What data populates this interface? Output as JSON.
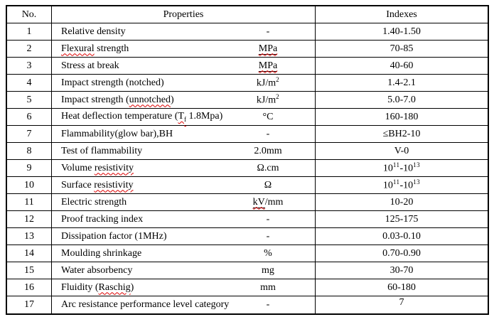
{
  "colors": {
    "background": "#ffffff",
    "border": "#000000",
    "text": "#000000",
    "spellcheck_squiggle": "#dd0000"
  },
  "table": {
    "header": {
      "no": "No.",
      "properties": "Properties",
      "indexes": "Indexes"
    },
    "rows": [
      {
        "no": "1",
        "property": [
          {
            "t": "Relative density"
          }
        ],
        "unit": [
          {
            "t": "-"
          }
        ],
        "index": [
          {
            "t": "1.40-1.50"
          }
        ]
      },
      {
        "no": "2",
        "property": [
          {
            "t": "Flexural",
            "s": "wavy"
          },
          {
            "t": " strength"
          }
        ],
        "unit": [
          {
            "t": "MPa",
            "s": "ul wavy"
          }
        ],
        "index": [
          {
            "t": "70-85"
          }
        ]
      },
      {
        "no": "3",
        "property": [
          {
            "t": "Stress at break"
          }
        ],
        "unit": [
          {
            "t": "MPa",
            "s": "ul wavy"
          }
        ],
        "index": [
          {
            "t": "40-60"
          }
        ]
      },
      {
        "no": "4",
        "property": [
          {
            "t": "Impact strength (notched)"
          }
        ],
        "unit": [
          {
            "t": "kJ/m"
          },
          {
            "t": "2",
            "s": "sup"
          }
        ],
        "index": [
          {
            "t": "1.4-2.1"
          }
        ]
      },
      {
        "no": "5",
        "property": [
          {
            "t": "Impact strength ("
          },
          {
            "t": "unnotched",
            "s": "wavy"
          },
          {
            "t": ")"
          }
        ],
        "unit": [
          {
            "t": "kJ/m"
          },
          {
            "t": "2",
            "s": "sup"
          }
        ],
        "index": [
          {
            "t": "5.0-7.0"
          }
        ]
      },
      {
        "no": "6",
        "property": [
          {
            "t": "Heat deflection temperature ("
          },
          {
            "t": "T",
            "s": "wavy"
          },
          {
            "t": "f",
            "s": "sub wavy"
          },
          {
            "t": " 1.8Mpa)"
          }
        ],
        "unit": [
          {
            "t": "°C"
          }
        ],
        "index": [
          {
            "t": "160-180"
          }
        ]
      },
      {
        "no": "7",
        "property": [
          {
            "t": "Flammability(glow bar),BH"
          }
        ],
        "unit": [
          {
            "t": "-"
          }
        ],
        "index": [
          {
            "t": "≤BH2-10"
          }
        ]
      },
      {
        "no": "8",
        "property": [
          {
            "t": "Test of flammability"
          }
        ],
        "unit": [
          {
            "t": "2.0mm"
          }
        ],
        "index": [
          {
            "t": "V-0"
          }
        ]
      },
      {
        "no": "9",
        "property": [
          {
            "t": "Volume "
          },
          {
            "t": "resistivity",
            "s": "wavy"
          }
        ],
        "unit": [
          {
            "t": "Ω.cm"
          }
        ],
        "index": [
          {
            "t": "10"
          },
          {
            "t": "11",
            "s": "sup"
          },
          {
            "t": "-10"
          },
          {
            "t": "13",
            "s": "sup"
          }
        ]
      },
      {
        "no": "10",
        "property": [
          {
            "t": "Surface "
          },
          {
            "t": "resistivity",
            "s": "wavy"
          }
        ],
        "unit": [
          {
            "t": "Ω"
          }
        ],
        "index": [
          {
            "t": "10"
          },
          {
            "t": "11",
            "s": "sup"
          },
          {
            "t": "-10"
          },
          {
            "t": "13",
            "s": "sup"
          }
        ]
      },
      {
        "no": "11",
        "property": [
          {
            "t": "Electric strength"
          }
        ],
        "unit": [
          {
            "t": "kV",
            "s": "ul wavy"
          },
          {
            "t": "/mm"
          }
        ],
        "index": [
          {
            "t": "10-20"
          }
        ]
      },
      {
        "no": "12",
        "property": [
          {
            "t": "Proof tracking index"
          }
        ],
        "unit": [
          {
            "t": "-"
          }
        ],
        "index": [
          {
            "t": "125-175"
          }
        ]
      },
      {
        "no": "13",
        "property": [
          {
            "t": "Dissipation factor (1MHz)"
          }
        ],
        "unit": [
          {
            "t": "-"
          }
        ],
        "index": [
          {
            "t": "0.03-0.10"
          }
        ]
      },
      {
        "no": "14",
        "property": [
          {
            "t": "Moulding shrinkage"
          }
        ],
        "unit": [
          {
            "t": "%"
          }
        ],
        "index": [
          {
            "t": "0.70-0.90"
          }
        ]
      },
      {
        "no": "15",
        "property": [
          {
            "t": "Water absorbency"
          }
        ],
        "unit": [
          {
            "t": "mg"
          }
        ],
        "index": [
          {
            "t": "30-70"
          }
        ]
      },
      {
        "no": "16",
        "property": [
          {
            "t": "Fluidity ("
          },
          {
            "t": "Raschig",
            "s": "wavy"
          },
          {
            "t": ")"
          }
        ],
        "unit": [
          {
            "t": "mm"
          }
        ],
        "index": [
          {
            "t": "60-180"
          }
        ]
      },
      {
        "no": "17",
        "property": [
          {
            "t": "Arc resistance performance level category"
          }
        ],
        "unit": [
          {
            "t": "-"
          }
        ],
        "index": [
          {
            "t": "7"
          }
        ],
        "index_top": true
      }
    ]
  }
}
